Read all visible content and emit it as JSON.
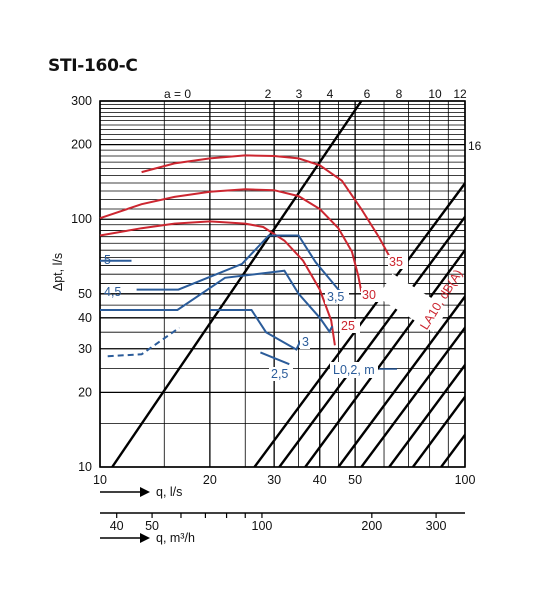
{
  "chart_data": {
    "type": "line",
    "title": "STI-160-C",
    "x_axis_ls": {
      "label": "q, l/s",
      "scale": "log",
      "range": [
        10,
        100
      ],
      "ticks": [
        10,
        20,
        30,
        40,
        50,
        100
      ]
    },
    "x_axis_m3h": {
      "label": "q, m³/h",
      "scale": "log",
      "ticks": [
        40,
        50,
        100,
        200,
        300
      ]
    },
    "y_axis": {
      "label": "Δpt, l/s",
      "scale": "log",
      "range": [
        10,
        300
      ],
      "ticks": [
        10,
        20,
        30,
        40,
        50,
        100,
        200,
        300
      ]
    },
    "grid": true,
    "damper_lines": {
      "label_prefix": "a = ",
      "labels": [
        "0",
        "2",
        "3",
        "4",
        "6",
        "8",
        "10",
        "12",
        "16"
      ],
      "points": [
        [
          [
            10.8,
            10
          ],
          [
            52,
            300
          ]
        ],
        [
          [
            26.5,
            10
          ],
          [
            147,
            300
          ]
        ],
        [
          [
            31,
            10
          ],
          [
            172,
            300
          ]
        ],
        [
          [
            36.5,
            10
          ],
          [
            200,
            300
          ]
        ],
        [
          [
            45,
            10
          ],
          [
            250,
            300
          ]
        ],
        [
          [
            52,
            10
          ],
          [
            290,
            300
          ]
        ],
        [
          [
            62,
            10
          ],
          [
            345,
            300
          ]
        ],
        [
          [
            72,
            10
          ],
          [
            400,
            300
          ]
        ],
        [
          [
            86,
            10
          ],
          [
            480,
            300
          ]
        ]
      ]
    },
    "sound_curves": {
      "title": "LA10, dB(A)",
      "color": "#cc2630",
      "series": [
        {
          "name": "35",
          "points": [
            [
              13,
              155
            ],
            [
              16,
              168
            ],
            [
              20,
              176
            ],
            [
              25,
              181
            ],
            [
              30,
              180
            ],
            [
              35,
              176
            ],
            [
              40,
              165
            ],
            [
              46,
              143
            ],
            [
              52,
              110
            ],
            [
              58,
              85
            ],
            [
              63,
              68
            ]
          ]
        },
        {
          "name": "30",
          "points": [
            [
              10,
              101
            ],
            [
              13,
              115
            ],
            [
              16,
              123
            ],
            [
              20,
              129
            ],
            [
              25,
              132
            ],
            [
              30,
              131
            ],
            [
              35,
              124
            ],
            [
              40,
              110
            ],
            [
              45,
              92
            ],
            [
              49,
              74
            ],
            [
              51,
              59
            ],
            [
              52,
              51
            ]
          ]
        },
        {
          "name": "25",
          "points": [
            [
              10,
              86
            ],
            [
              13,
              92
            ],
            [
              16,
              96
            ],
            [
              20,
              98
            ],
            [
              25,
              96
            ],
            [
              28,
              93
            ],
            [
              32,
              82
            ],
            [
              36,
              68
            ],
            [
              40,
              52
            ],
            [
              43,
              39
            ],
            [
              44,
              31
            ]
          ]
        }
      ]
    },
    "throw_curves": {
      "title": "L0,2, m",
      "color": "#2b5c9a",
      "series": [
        {
          "name": "5",
          "points": [
            [
              10,
              68
            ],
            [
              12.2,
              68
            ]
          ]
        },
        {
          "name": "4,5",
          "points": [
            [
              12.6,
              52
            ],
            [
              16.4,
              52
            ],
            [
              24.5,
              66
            ],
            [
              29,
              86
            ],
            [
              35,
              86
            ],
            [
              39,
              67
            ],
            [
              45,
              52
            ],
            [
              48,
              48
            ]
          ]
        },
        {
          "name": "3,5",
          "points": [
            [
              10,
              43
            ],
            [
              16.3,
              43
            ],
            [
              22,
              58
            ],
            [
              32,
              62
            ],
            [
              35,
              50
            ],
            [
              40,
              40
            ],
            [
              42.5,
              35.2
            ],
            [
              43.3,
              37
            ]
          ]
        },
        {
          "name": "3",
          "points": [
            [
              20,
              43
            ],
            [
              26,
              43
            ],
            [
              28.5,
              35
            ],
            [
              34.5,
              29.8
            ],
            [
              35.5,
              32.5
            ]
          ]
        },
        {
          "name": "2,5",
          "points": [
            [
              27.5,
              29
            ],
            [
              33,
              26
            ]
          ]
        }
      ],
      "dashed": [
        [
          10.5,
          28
        ],
        [
          13,
          28.5
        ],
        [
          16.5,
          36.5
        ]
      ]
    }
  }
}
